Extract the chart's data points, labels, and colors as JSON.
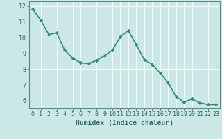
{
  "x": [
    0,
    1,
    2,
    3,
    4,
    5,
    6,
    7,
    8,
    9,
    10,
    11,
    12,
    13,
    14,
    15,
    16,
    17,
    18,
    19,
    20,
    21,
    22,
    23
  ],
  "y": [
    11.8,
    11.1,
    10.2,
    10.3,
    9.2,
    8.7,
    8.4,
    8.35,
    8.55,
    8.85,
    9.2,
    10.05,
    10.45,
    9.55,
    8.6,
    8.3,
    7.75,
    7.15,
    6.25,
    5.9,
    6.1,
    5.85,
    5.75,
    5.75
  ],
  "line_color": "#2e8b74",
  "marker": "D",
  "marker_size": 2.2,
  "bg_color": "#cce8e6",
  "grid_color": "#ffffff",
  "xlabel": "Humidex (Indice chaleur)",
  "ylim": [
    5.5,
    12.3
  ],
  "xlim": [
    -0.5,
    23.5
  ],
  "yticks": [
    6,
    7,
    8,
    9,
    10,
    11,
    12
  ],
  "xticks": [
    0,
    1,
    2,
    3,
    4,
    5,
    6,
    7,
    8,
    9,
    10,
    11,
    12,
    13,
    14,
    15,
    16,
    17,
    18,
    19,
    20,
    21,
    22,
    23
  ],
  "label_color": "#2e6b5e",
  "xlabel_fontsize": 7.0,
  "tick_fontsize": 6.0,
  "axis_color": "#5a8a80",
  "linewidth": 1.2
}
